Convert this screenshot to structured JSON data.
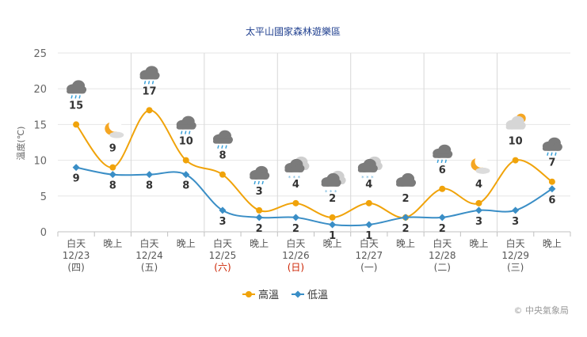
{
  "chart_data": {
    "type": "line",
    "title": "太平山國家森林遊樂區",
    "ylabel": "溫度(℃)",
    "ylim": [
      0,
      25
    ],
    "yticks": [
      0,
      5,
      10,
      15,
      20,
      25
    ],
    "grid": true,
    "legend_position": "bottom",
    "categories": [
      {
        "period": "白天",
        "date": "12/23",
        "weekday": "(四)",
        "icon": "rain-cloud-icon"
      },
      {
        "period": "晚上",
        "date": "",
        "weekday": "",
        "icon": "moon-cloud-icon"
      },
      {
        "period": "白天",
        "date": "12/24",
        "weekday": "(五)",
        "icon": "rain-cloud-icon"
      },
      {
        "period": "晚上",
        "date": "",
        "weekday": "",
        "icon": "rain-cloud-icon"
      },
      {
        "period": "白天",
        "date": "12/25",
        "weekday": "(六)",
        "icon": "rain-cloud-icon",
        "weekday_red": true
      },
      {
        "period": "晚上",
        "date": "",
        "weekday": "",
        "icon": "rain-cloud-icon"
      },
      {
        "period": "白天",
        "date": "12/26",
        "weekday": "(日)",
        "icon": "snow-rain-cloud-icon",
        "weekday_red": true
      },
      {
        "period": "晚上",
        "date": "",
        "weekday": "",
        "icon": "snow-rain-cloud-icon"
      },
      {
        "period": "白天",
        "date": "12/27",
        "weekday": "(一)",
        "icon": "snow-rain-cloud-icon"
      },
      {
        "period": "晚上",
        "date": "",
        "weekday": "",
        "icon": "cloud-icon"
      },
      {
        "period": "白天",
        "date": "12/28",
        "weekday": "(二)",
        "icon": "rain-cloud-icon"
      },
      {
        "period": "晚上",
        "date": "",
        "weekday": "",
        "icon": "moon-cloud-icon"
      },
      {
        "period": "白天",
        "date": "12/29",
        "weekday": "(三)",
        "icon": "sun-cloud-icon"
      },
      {
        "period": "晚上",
        "date": "",
        "weekday": "",
        "icon": "rain-cloud-icon"
      }
    ],
    "series": [
      {
        "name": "高溫",
        "color": "#f0a30a",
        "values": [
          15,
          9,
          17,
          10,
          8,
          3,
          4,
          2,
          4,
          2,
          6,
          4,
          10,
          7
        ]
      },
      {
        "name": "低溫",
        "color": "#3a8ec6",
        "values": [
          9,
          8,
          8,
          8,
          3,
          2,
          2,
          1,
          1,
          2,
          2,
          3,
          3,
          6
        ]
      }
    ]
  },
  "credit": "© 中央氣象局"
}
